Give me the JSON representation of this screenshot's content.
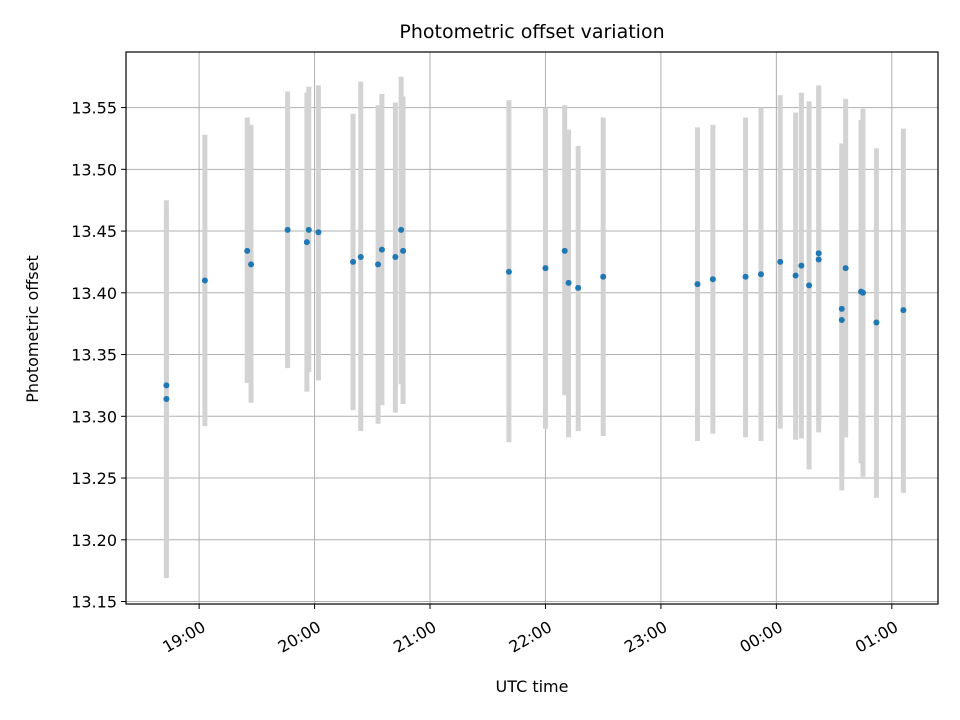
{
  "chart_data": {
    "type": "scatter",
    "title": "Photometric offset variation",
    "xlabel": "UTC time",
    "ylabel": "Photometric offset",
    "x_axis_kind": "time",
    "xlim": [
      "18:22",
      "01:24"
    ],
    "ylim": [
      13.148,
      13.595
    ],
    "grid": true,
    "x_ticks": [
      "19:00",
      "20:00",
      "21:00",
      "22:00",
      "23:00",
      "00:00",
      "01:00"
    ],
    "y_ticks": [
      13.15,
      13.2,
      13.25,
      13.3,
      13.35,
      13.4,
      13.45,
      13.5,
      13.55
    ],
    "y_tick_labels": [
      "13.15",
      "13.20",
      "13.25",
      "13.30",
      "13.35",
      "13.40",
      "13.45",
      "13.50",
      "13.55"
    ],
    "colors": {
      "marker": "#1f77b4",
      "errorbar": "#d3d3d3",
      "grid": "#b0b0b0"
    },
    "points": [
      {
        "x": "18:43",
        "y": 13.325,
        "err_low": 13.175,
        "err_high": 13.475
      },
      {
        "x": "18:43",
        "y": 13.314,
        "err_low": 13.169,
        "err_high": 13.459
      },
      {
        "x": "19:03",
        "y": 13.41,
        "err_low": 13.292,
        "err_high": 13.528
      },
      {
        "x": "19:25",
        "y": 13.434,
        "err_low": 13.327,
        "err_high": 13.542
      },
      {
        "x": "19:27",
        "y": 13.423,
        "err_low": 13.311,
        "err_high": 13.536
      },
      {
        "x": "19:46",
        "y": 13.451,
        "err_low": 13.339,
        "err_high": 13.563
      },
      {
        "x": "19:56",
        "y": 13.441,
        "err_low": 13.32,
        "err_high": 13.562
      },
      {
        "x": "19:57",
        "y": 13.451,
        "err_low": 13.336,
        "err_high": 13.567
      },
      {
        "x": "20:02",
        "y": 13.449,
        "err_low": 13.329,
        "err_high": 13.568
      },
      {
        "x": "20:20",
        "y": 13.425,
        "err_low": 13.305,
        "err_high": 13.545
      },
      {
        "x": "20:24",
        "y": 13.429,
        "err_low": 13.288,
        "err_high": 13.571
      },
      {
        "x": "20:33",
        "y": 13.423,
        "err_low": 13.294,
        "err_high": 13.552
      },
      {
        "x": "20:35",
        "y": 13.435,
        "err_low": 13.309,
        "err_high": 13.561
      },
      {
        "x": "20:42",
        "y": 13.429,
        "err_low": 13.303,
        "err_high": 13.554
      },
      {
        "x": "20:45",
        "y": 13.451,
        "err_low": 13.326,
        "err_high": 13.575
      },
      {
        "x": "20:46",
        "y": 13.434,
        "err_low": 13.31,
        "err_high": 13.559
      },
      {
        "x": "21:41",
        "y": 13.417,
        "err_low": 13.279,
        "err_high": 13.556
      },
      {
        "x": "22:00",
        "y": 13.42,
        "err_low": 13.29,
        "err_high": 13.55
      },
      {
        "x": "22:10",
        "y": 13.434,
        "err_low": 13.317,
        "err_high": 13.552
      },
      {
        "x": "22:12",
        "y": 13.408,
        "err_low": 13.283,
        "err_high": 13.532
      },
      {
        "x": "22:17",
        "y": 13.404,
        "err_low": 13.288,
        "err_high": 13.519
      },
      {
        "x": "22:30",
        "y": 13.413,
        "err_low": 13.284,
        "err_high": 13.542
      },
      {
        "x": "23:19",
        "y": 13.407,
        "err_low": 13.28,
        "err_high": 13.534
      },
      {
        "x": "23:27",
        "y": 13.411,
        "err_low": 13.286,
        "err_high": 13.536
      },
      {
        "x": "23:44",
        "y": 13.413,
        "err_low": 13.283,
        "err_high": 13.542
      },
      {
        "x": "23:52",
        "y": 13.415,
        "err_low": 13.28,
        "err_high": 13.55
      },
      {
        "x": "00:02",
        "y": 13.425,
        "err_low": 13.29,
        "err_high": 13.56
      },
      {
        "x": "00:10",
        "y": 13.414,
        "err_low": 13.281,
        "err_high": 13.546
      },
      {
        "x": "00:13",
        "y": 13.422,
        "err_low": 13.282,
        "err_high": 13.562
      },
      {
        "x": "00:17",
        "y": 13.406,
        "err_low": 13.257,
        "err_high": 13.555
      },
      {
        "x": "00:22",
        "y": 13.432,
        "err_low": 13.296,
        "err_high": 13.568
      },
      {
        "x": "00:22",
        "y": 13.427,
        "err_low": 13.287,
        "err_high": 13.567
      },
      {
        "x": "00:34",
        "y": 13.387,
        "err_low": 13.253,
        "err_high": 13.521
      },
      {
        "x": "00:34",
        "y": 13.378,
        "err_low": 13.24,
        "err_high": 13.516
      },
      {
        "x": "00:36",
        "y": 13.42,
        "err_low": 13.283,
        "err_high": 13.557
      },
      {
        "x": "00:44",
        "y": 13.401,
        "err_low": 13.262,
        "err_high": 13.54
      },
      {
        "x": "00:45",
        "y": 13.4,
        "err_low": 13.251,
        "err_high": 13.549
      },
      {
        "x": "00:52",
        "y": 13.376,
        "err_low": 13.234,
        "err_high": 13.517
      },
      {
        "x": "01:06",
        "y": 13.386,
        "err_low": 13.238,
        "err_high": 13.533
      }
    ]
  }
}
